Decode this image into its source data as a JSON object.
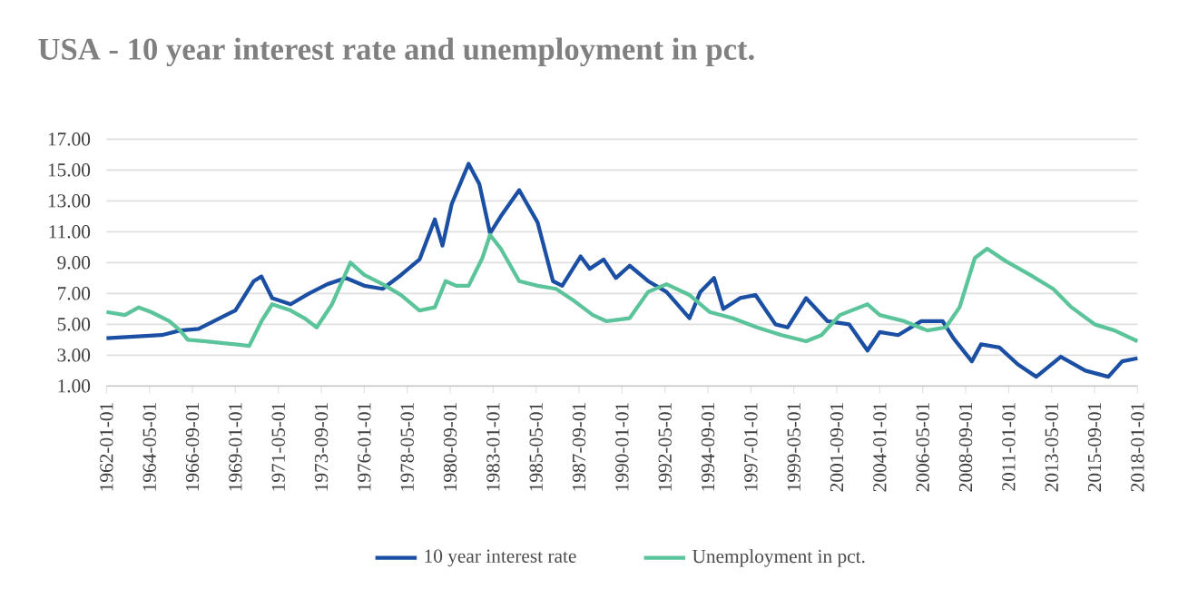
{
  "chart_data": {
    "type": "line",
    "title": "USA - 10 year interest rate and unemployment in pct.",
    "xlim": [
      "1962-01-01",
      "2018-01-01"
    ],
    "xticks": [
      "1962-01-01",
      "1964-05-01",
      "1966-09-01",
      "1969-01-01",
      "1971-05-01",
      "1973-09-01",
      "1976-01-01",
      "1978-05-01",
      "1980-09-01",
      "1983-01-01",
      "1985-05-01",
      "1987-09-01",
      "1990-01-01",
      "1992-05-01",
      "1994-09-01",
      "1997-01-01",
      "1999-05-01",
      "2001-09-01",
      "2004-01-01",
      "2006-05-01",
      "2008-09-01",
      "2011-01-01",
      "2013-05-01",
      "2015-09-01",
      "2018-01-01"
    ],
    "ylim": [
      1,
      17
    ],
    "yticks": [
      {
        "value": 1,
        "label": "1.00"
      },
      {
        "value": 3,
        "label": "3.00"
      },
      {
        "value": 5,
        "label": "5.00"
      },
      {
        "value": 7,
        "label": "7.00"
      },
      {
        "value": 9,
        "label": "9.00"
      },
      {
        "value": 11,
        "label": "11.00"
      },
      {
        "value": 13,
        "label": "13.00"
      },
      {
        "value": 15,
        "label": "15.00"
      },
      {
        "value": 17,
        "label": "17.00"
      }
    ],
    "grid": "y",
    "legend": "bottom",
    "marker": "none",
    "line_style": "solid",
    "series": [
      {
        "name": "10 year interest rate",
        "color": "#1a4fa3",
        "x": [
          "1962-01",
          "1965-01",
          "1966-01",
          "1967-01",
          "1969-01",
          "1970-01",
          "1970-06",
          "1971-01",
          "1972-01",
          "1973-01",
          "1974-01",
          "1975-01",
          "1976-01",
          "1977-01",
          "1978-01",
          "1979-01",
          "1979-11",
          "1980-04",
          "1980-10",
          "1981-09",
          "1982-04",
          "1982-11",
          "1983-06",
          "1984-06",
          "1985-06",
          "1986-04",
          "1986-10",
          "1987-10",
          "1988-04",
          "1989-01",
          "1989-09",
          "1990-06",
          "1991-06",
          "1992-06",
          "1993-09",
          "1994-04",
          "1995-01",
          "1995-07",
          "1996-06",
          "1997-04",
          "1998-05",
          "1999-01",
          "2000-01",
          "2001-03",
          "2002-05",
          "2003-05",
          "2004-01",
          "2005-01",
          "2006-04",
          "2007-06",
          "2008-01",
          "2009-01",
          "2009-07",
          "2010-07",
          "2011-07",
          "2012-07",
          "2013-11",
          "2015-03",
          "2016-06",
          "2017-03",
          "2018-01"
        ],
        "values": [
          4.1,
          4.3,
          4.6,
          4.7,
          5.9,
          7.8,
          8.1,
          6.7,
          6.3,
          7.0,
          7.6,
          8.0,
          7.5,
          7.3,
          8.2,
          9.2,
          11.8,
          10.1,
          12.8,
          15.4,
          14.1,
          10.9,
          12.0,
          13.7,
          11.6,
          7.8,
          7.5,
          9.4,
          8.6,
          9.2,
          8.0,
          8.8,
          7.8,
          7.1,
          5.4,
          7.1,
          8.0,
          6.0,
          6.7,
          6.9,
          5.0,
          4.8,
          6.7,
          5.2,
          5.0,
          3.3,
          4.5,
          4.3,
          5.2,
          5.2,
          4.1,
          2.6,
          3.7,
          3.5,
          2.4,
          1.6,
          2.9,
          2.0,
          1.6,
          2.6,
          2.8
        ]
      },
      {
        "name": "Unemployment in pct.",
        "color": "#5cc49a",
        "x": [
          "1962-01",
          "1963-01",
          "1963-10",
          "1964-06",
          "1965-06",
          "1966-01",
          "1966-06",
          "1967-06",
          "1969-01",
          "1969-10",
          "1970-06",
          "1971-01",
          "1972-01",
          "1972-10",
          "1973-06",
          "1974-04",
          "1975-04",
          "1976-01",
          "1977-01",
          "1978-01",
          "1979-01",
          "1979-11",
          "1980-06",
          "1981-01",
          "1981-09",
          "1982-06",
          "1982-11",
          "1983-06",
          "1984-06",
          "1985-06",
          "1986-06",
          "1987-06",
          "1988-06",
          "1989-03",
          "1990-06",
          "1991-06",
          "1992-06",
          "1993-09",
          "1994-10",
          "1996-01",
          "1997-05",
          "1998-09",
          "2000-01",
          "2000-11",
          "2001-11",
          "2003-05",
          "2004-01",
          "2005-05",
          "2006-08",
          "2007-08",
          "2008-05",
          "2009-03",
          "2009-11",
          "2010-11",
          "2012-03",
          "2013-06",
          "2014-06",
          "2015-09",
          "2016-10",
          "2018-01"
        ],
        "values": [
          5.8,
          5.6,
          6.1,
          5.8,
          5.2,
          4.6,
          4.0,
          3.9,
          3.7,
          3.6,
          5.2,
          6.3,
          5.9,
          5.4,
          4.8,
          6.3,
          9.0,
          8.2,
          7.6,
          6.9,
          5.9,
          6.1,
          7.8,
          7.5,
          7.5,
          9.3,
          10.8,
          9.9,
          7.8,
          7.5,
          7.3,
          6.5,
          5.6,
          5.2,
          5.4,
          7.1,
          7.6,
          6.9,
          5.8,
          5.4,
          4.8,
          4.3,
          3.9,
          4.3,
          5.6,
          6.3,
          5.6,
          5.2,
          4.6,
          4.8,
          6.1,
          9.3,
          9.9,
          9.1,
          8.2,
          7.3,
          6.1,
          5.0,
          4.6,
          3.9
        ]
      }
    ]
  }
}
